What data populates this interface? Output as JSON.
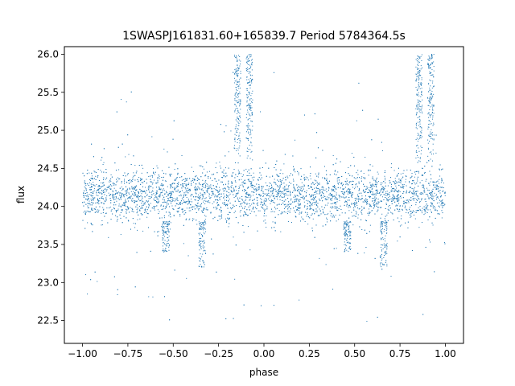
{
  "chart_data": {
    "type": "scatter",
    "title": "1SWASPJ161831.60+165839.7 Period 5784364.5s",
    "xlabel": "phase",
    "ylabel": "flux",
    "xlim": [
      -1.1,
      1.1
    ],
    "ylim": [
      22.2,
      26.1
    ],
    "xticks": [
      -1.0,
      -0.75,
      -0.5,
      -0.25,
      0.0,
      0.25,
      0.5,
      0.75,
      1.0
    ],
    "xtick_labels": [
      "−1.00",
      "−0.75",
      "−0.50",
      "−0.25",
      "0.00",
      "0.25",
      "0.50",
      "0.75",
      "1.00"
    ],
    "yticks": [
      22.5,
      23.0,
      23.5,
      24.0,
      24.5,
      25.0,
      25.5,
      26.0
    ],
    "ytick_labels": [
      "22.5",
      "23.0",
      "23.5",
      "24.0",
      "24.5",
      "25.0",
      "25.5",
      "26.0"
    ],
    "grid": false,
    "point_color": "#1f77b4",
    "x_range_of_points": [
      -1.0,
      1.0
    ],
    "baseline_flux": 24.15,
    "core_band": [
      23.75,
      24.55
    ],
    "flares": [
      {
        "phase": -0.145,
        "peak_flux": 26.0
      },
      {
        "phase": -0.08,
        "peak_flux": 26.0
      },
      {
        "phase": 0.855,
        "peak_flux": 26.0
      },
      {
        "phase": 0.92,
        "peak_flux": 26.0
      }
    ],
    "dips": [
      {
        "phase": -0.34,
        "min_flux": 23.2
      },
      {
        "phase": -0.54,
        "min_flux": 23.4
      },
      {
        "phase": 0.46,
        "min_flux": 23.4
      },
      {
        "phase": 0.66,
        "min_flux": 23.2
      }
    ]
  }
}
